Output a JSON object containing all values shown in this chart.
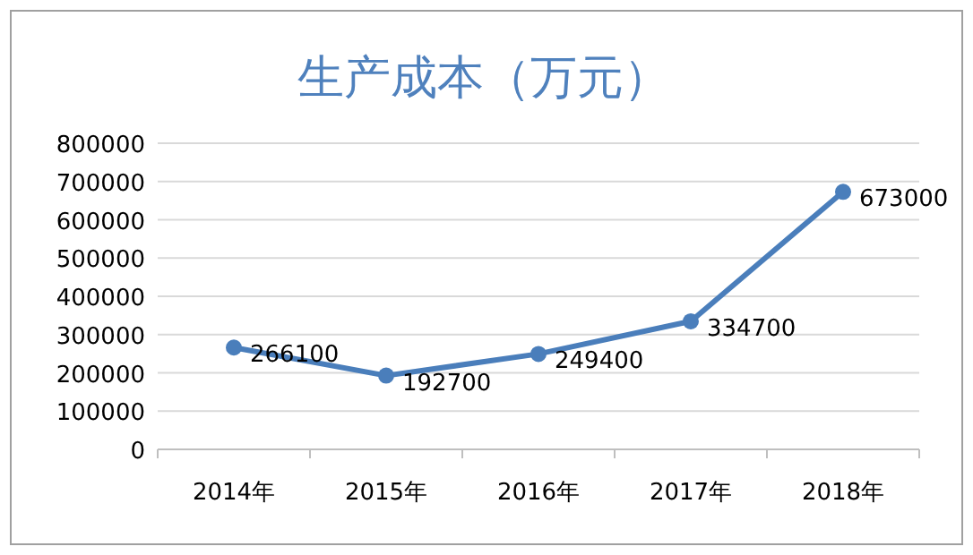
{
  "chart_data": {
    "type": "line",
    "title": "生产成本（万元）",
    "categories": [
      "2014年",
      "2015年",
      "2016年",
      "2017年",
      "2018年"
    ],
    "series": [
      {
        "color": "#4a7ebb",
        "values": [
          266100,
          192700,
          249400,
          334700,
          673000
        ]
      }
    ],
    "ylim": [
      0,
      800000
    ],
    "yticks": [
      0,
      100000,
      200000,
      300000,
      400000,
      500000,
      600000,
      700000,
      800000
    ],
    "grid": "y",
    "marker": "circle",
    "line_style": "solid",
    "data_labels": true
  }
}
